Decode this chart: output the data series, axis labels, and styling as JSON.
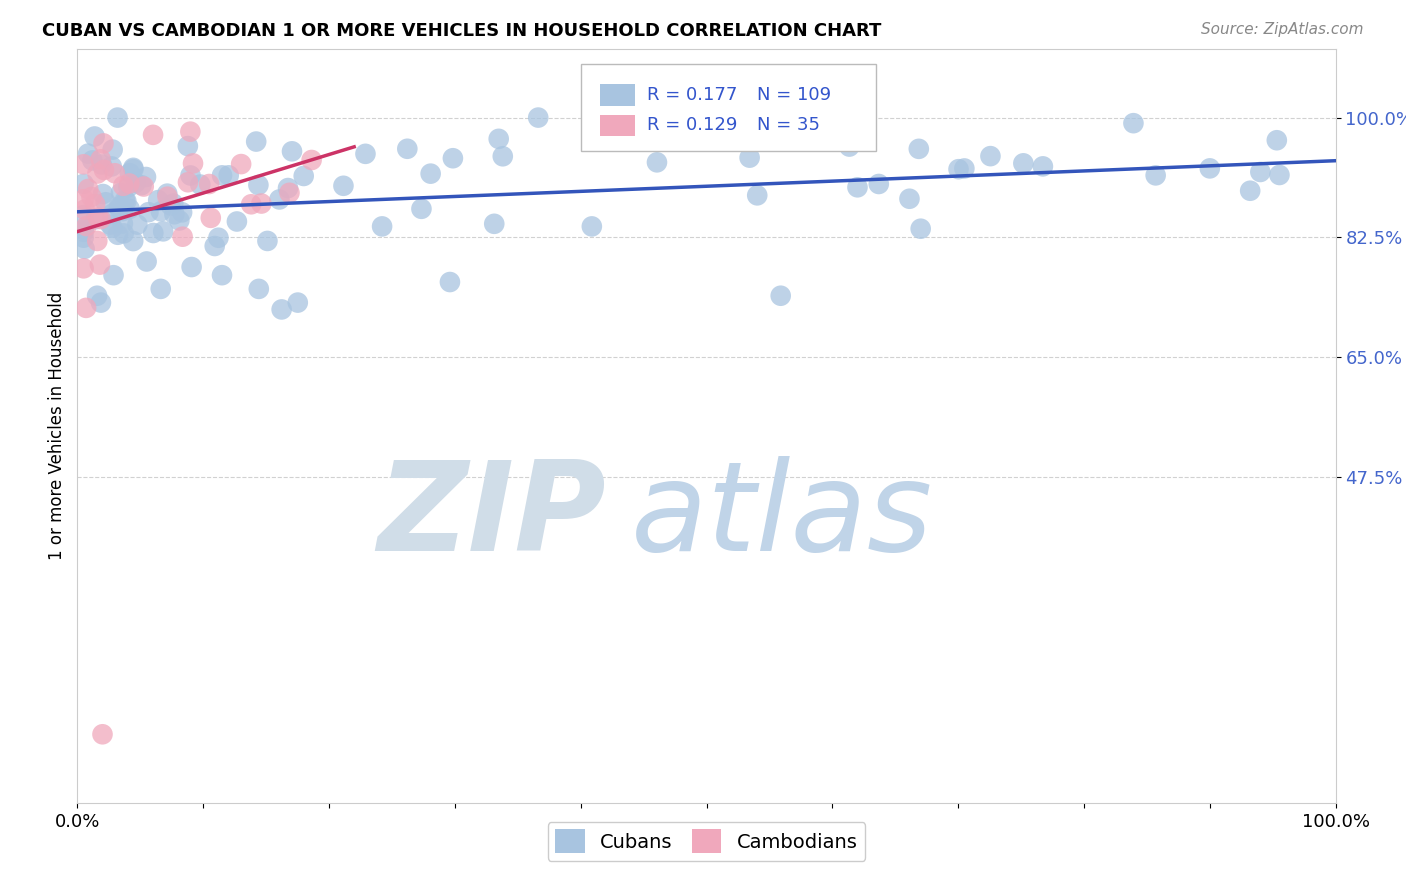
{
  "title": "CUBAN VS CAMBODIAN 1 OR MORE VEHICLES IN HOUSEHOLD CORRELATION CHART",
  "source": "Source: ZipAtlas.com",
  "ylabel": "1 or more Vehicles in Household",
  "xlim": [
    0.0,
    1.0
  ],
  "ylim": [
    0.0,
    1.1
  ],
  "xtick_positions": [
    0.0,
    0.1,
    0.2,
    0.3,
    0.4,
    0.5,
    0.6,
    0.7,
    0.8,
    0.9,
    1.0
  ],
  "xticklabels": [
    "0.0%",
    "",
    "",
    "",
    "",
    "",
    "",
    "",
    "",
    "",
    "100.0%"
  ],
  "ytick_positions": [
    0.475,
    0.65,
    0.825,
    1.0
  ],
  "ytick_labels": [
    "47.5%",
    "65.0%",
    "82.5%",
    "100.0%"
  ],
  "cuban_color": "#a8c4e0",
  "cambodian_color": "#f0a8bc",
  "cuban_line_color": "#3355bb",
  "cambodian_line_color": "#cc3366",
  "cuban_R": 0.177,
  "cuban_N": 109,
  "cambodian_R": 0.129,
  "cambodian_N": 35,
  "tick_label_color": "#4466cc",
  "legend_R_color": "#3355cc",
  "legend_N_color": "#000000",
  "watermark_zip_color": "#d0dde8",
  "watermark_atlas_color": "#c0d4e8"
}
